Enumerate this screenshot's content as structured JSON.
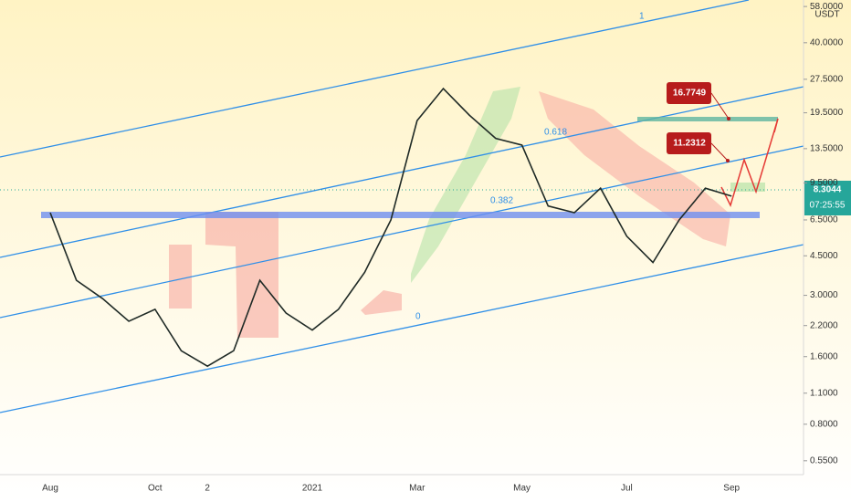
{
  "chart_data": {
    "type": "line",
    "y_unit": "USDT",
    "log_scale": true,
    "ylim": [
      0.5,
      62
    ],
    "yticks": [
      {
        "value": 0.55,
        "label": "0.5500"
      },
      {
        "value": 0.8,
        "label": "0.8000"
      },
      {
        "value": 1.1,
        "label": "1.1000"
      },
      {
        "value": 1.6,
        "label": "1.6000"
      },
      {
        "value": 2.2,
        "label": "2.2000"
      },
      {
        "value": 3,
        "label": "3.0000"
      },
      {
        "value": 4.5,
        "label": "4.5000"
      },
      {
        "value": 6.5,
        "label": "6.5000"
      },
      {
        "value": 9.5,
        "label": "9.5000"
      },
      {
        "value": 13.5,
        "label": "13.5000"
      },
      {
        "value": 19.5,
        "label": "19.5000"
      },
      {
        "value": 27.5,
        "label": "27.5000"
      },
      {
        "value": 40,
        "label": "40.0000"
      },
      {
        "value": 58,
        "label": "58.0000"
      }
    ],
    "categories": [
      "Aug",
      null,
      null,
      null,
      "Oct",
      null,
      "2",
      null,
      null,
      null,
      "2021",
      null,
      null,
      null,
      "Mar",
      null,
      null,
      null,
      "May",
      null,
      null,
      null,
      "Jul",
      null,
      null,
      null,
      "Sep",
      null,
      null,
      null
    ],
    "series": [
      {
        "color": "#1f2a26",
        "values": [
          7.0,
          3.5,
          2.9,
          2.3,
          2.6,
          1.7,
          1.45,
          1.7,
          3.5,
          2.5,
          2.1,
          2.6,
          3.8,
          6.5,
          18,
          25,
          19,
          15,
          14,
          7.5,
          7.0,
          9,
          5.5,
          4.2,
          6.5,
          9,
          8.3,
          null,
          null,
          null
        ]
      }
    ],
    "fib_labels": [
      "1",
      "0.618",
      "0.382",
      "0"
    ],
    "targets": [
      16.7749,
      11.2312
    ],
    "last_price": 8.3044,
    "countdown": "07:25:55"
  }
}
